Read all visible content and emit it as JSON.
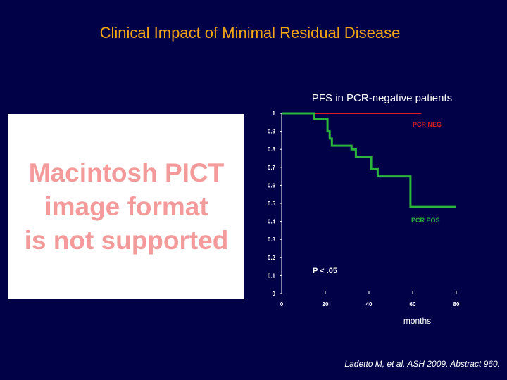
{
  "slide": {
    "title": "Clinical Impact of Minimal Residual Disease",
    "citation": "Ladetto M, et al. ASH 2009. Abstract 960."
  },
  "placeholder": {
    "text": "Macintosh PICT\nimage format\nis not supported"
  },
  "chart_data": {
    "type": "line",
    "title": "PFS in PCR-negative patients",
    "xlabel": "months",
    "ylabel": "",
    "xlim": [
      0,
      80
    ],
    "ylim": [
      0,
      1
    ],
    "x_ticks": [
      0,
      20,
      40,
      60,
      80
    ],
    "y_ticks": [
      0,
      0.1,
      0.2,
      0.3,
      0.4,
      0.5,
      0.6,
      0.7,
      0.8,
      0.9,
      1
    ],
    "grid": false,
    "series": [
      {
        "name": "PCR NEG",
        "color": "#d92020",
        "step": true,
        "x": [
          0,
          64
        ],
        "y": [
          1,
          1
        ]
      },
      {
        "name": "PCR POS",
        "color": "#2cb43c",
        "step": true,
        "x": [
          0,
          15,
          21,
          22,
          23,
          25,
          32,
          34,
          41,
          44,
          58,
          59,
          80
        ],
        "y": [
          1,
          0.97,
          0.9,
          0.86,
          0.82,
          0.82,
          0.8,
          0.76,
          0.69,
          0.65,
          0.65,
          0.48,
          0.48
        ]
      }
    ],
    "annotations": [
      {
        "text": "P < .05",
        "color": "#ffffff"
      }
    ]
  }
}
